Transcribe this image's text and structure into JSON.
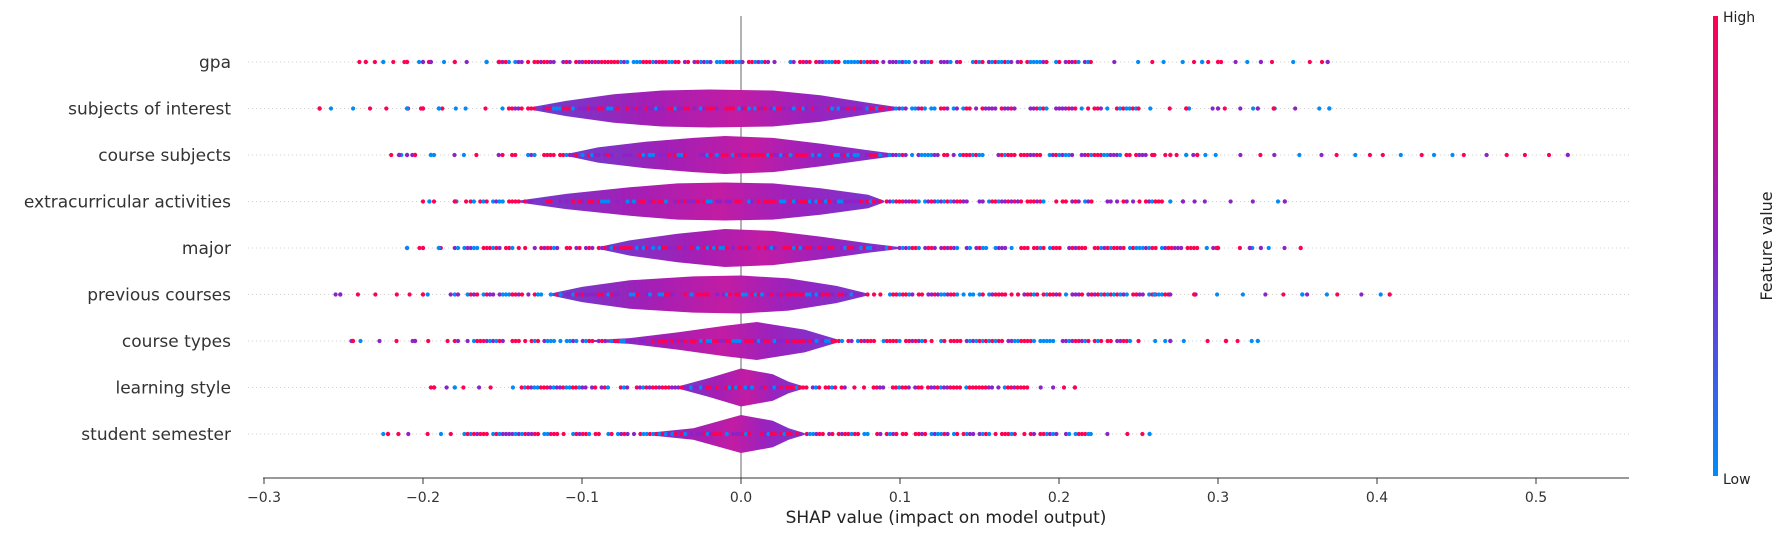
{
  "chart_data": {
    "type": "scatter",
    "variant": "shap-violin-summary",
    "xlabel": "SHAP value (impact on model output)",
    "xlim": [
      -0.31,
      0.57
    ],
    "x_ticks": [
      -0.3,
      -0.2,
      -0.1,
      0.0,
      0.1,
      0.2,
      0.3,
      0.4,
      0.5
    ],
    "x_tick_labels": [
      "−0.3",
      "−0.2",
      "−0.1",
      "0.0",
      "0.1",
      "0.2",
      "0.3",
      "0.4",
      "0.5"
    ],
    "colorbar": {
      "label": "Feature value",
      "high_label": "High",
      "low_label": "Low",
      "high_color": "#ff0052",
      "mid_color": "#8c23c8",
      "low_color": "#008bfb"
    },
    "features": [
      {
        "name": "gpa",
        "range": [
          -0.24,
          0.37
        ],
        "core": [
          -0.15,
          0.22
        ],
        "violin": false,
        "body": [],
        "outliers": [
          -0.236,
          -0.225,
          -0.21,
          -0.2,
          -0.195,
          -0.18,
          -0.16,
          -0.152,
          0.29,
          0.3,
          0.327,
          0.369
        ]
      },
      {
        "name": "subjects of interest",
        "range": [
          -0.265,
          0.37
        ],
        "core": [
          -0.15,
          0.25
        ],
        "violin": true,
        "body": [
          [
            -0.13,
            0.1
          ],
          [
            -0.11,
            0.4
          ],
          [
            -0.08,
            0.75
          ],
          [
            -0.05,
            0.95
          ],
          [
            -0.02,
            1.0
          ],
          [
            0.02,
            0.95
          ],
          [
            0.05,
            0.7
          ],
          [
            0.08,
            0.3
          ],
          [
            0.1,
            0.05
          ]
        ],
        "outliers": [
          -0.265,
          -0.21,
          -0.2,
          -0.19,
          0.28,
          0.3,
          0.325,
          0.335,
          0.37
        ]
      },
      {
        "name": "course subjects",
        "range": [
          -0.22,
          0.52
        ],
        "core": [
          -0.15,
          0.26
        ],
        "violin": true,
        "body": [
          [
            -0.11,
            0.05
          ],
          [
            -0.09,
            0.4
          ],
          [
            -0.06,
            0.7
          ],
          [
            -0.03,
            0.9
          ],
          [
            -0.01,
            1.0
          ],
          [
            0.02,
            0.9
          ],
          [
            0.05,
            0.6
          ],
          [
            0.08,
            0.25
          ],
          [
            0.1,
            0.03
          ]
        ],
        "outliers": [
          -0.215,
          -0.21,
          -0.205,
          -0.195,
          0.27,
          0.28,
          0.287,
          0.52
        ]
      },
      {
        "name": "extracurricular activities",
        "range": [
          -0.2,
          0.34
        ],
        "core": [
          -0.17,
          0.27
        ],
        "violin": true,
        "body": [
          [
            -0.14,
            0.05
          ],
          [
            -0.11,
            0.4
          ],
          [
            -0.07,
            0.75
          ],
          [
            -0.04,
            0.95
          ],
          [
            -0.01,
            1.0
          ],
          [
            0.02,
            0.95
          ],
          [
            0.05,
            0.7
          ],
          [
            0.08,
            0.35
          ],
          [
            0.09,
            0.05
          ]
        ],
        "outliers": [
          -0.196,
          -0.18,
          0.278,
          0.342
        ]
      },
      {
        "name": "major",
        "range": [
          -0.21,
          0.35
        ],
        "core": [
          -0.18,
          0.3
        ],
        "violin": true,
        "body": [
          [
            -0.09,
            0.05
          ],
          [
            -0.07,
            0.4
          ],
          [
            -0.04,
            0.75
          ],
          [
            -0.01,
            1.0
          ],
          [
            0.02,
            0.9
          ],
          [
            0.05,
            0.6
          ],
          [
            0.08,
            0.25
          ],
          [
            0.1,
            0.05
          ]
        ],
        "outliers": [
          -0.21,
          -0.2,
          -0.19,
          0.3,
          0.32,
          0.327,
          0.352
        ]
      },
      {
        "name": "previous courses",
        "range": [
          -0.255,
          0.41
        ],
        "core": [
          -0.18,
          0.27
        ],
        "violin": true,
        "body": [
          [
            -0.12,
            0.05
          ],
          [
            -0.1,
            0.4
          ],
          [
            -0.07,
            0.75
          ],
          [
            -0.03,
            0.95
          ],
          [
            0.0,
            1.0
          ],
          [
            0.03,
            0.85
          ],
          [
            0.06,
            0.45
          ],
          [
            0.08,
            0.05
          ]
        ],
        "outliers": [
          -0.252,
          -0.2,
          0.26,
          0.285,
          0.353,
          0.408
        ]
      },
      {
        "name": "course types",
        "range": [
          -0.245,
          0.325
        ],
        "core": [
          -0.18,
          0.25
        ],
        "violin": true,
        "body": [
          [
            -0.1,
            0.02
          ],
          [
            -0.07,
            0.15
          ],
          [
            -0.04,
            0.45
          ],
          [
            -0.01,
            0.8
          ],
          [
            0.01,
            1.0
          ],
          [
            0.04,
            0.6
          ],
          [
            0.06,
            0.1
          ]
        ],
        "outliers": [
          -0.244,
          -0.205,
          0.27,
          0.305,
          0.325
        ]
      },
      {
        "name": "learning style",
        "range": [
          -0.195,
          0.21
        ],
        "core": [
          -0.14,
          0.18
        ],
        "violin": true,
        "body": [
          [
            -0.04,
            0.05
          ],
          [
            -0.02,
            0.5
          ],
          [
            0.0,
            1.0
          ],
          [
            0.02,
            0.7
          ],
          [
            0.03,
            0.3
          ],
          [
            0.04,
            0.05
          ]
        ],
        "outliers": [
          -0.193,
          -0.18,
          0.21
        ]
      },
      {
        "name": "student semester",
        "range": [
          -0.225,
          0.26
        ],
        "core": [
          -0.18,
          0.22
        ],
        "violin": true,
        "body": [
          [
            -0.06,
            0.05
          ],
          [
            -0.03,
            0.3
          ],
          [
            0.0,
            1.0
          ],
          [
            0.02,
            0.7
          ],
          [
            0.03,
            0.3
          ],
          [
            0.04,
            0.05
          ]
        ],
        "outliers": [
          -0.222,
          0.257
        ]
      }
    ]
  }
}
